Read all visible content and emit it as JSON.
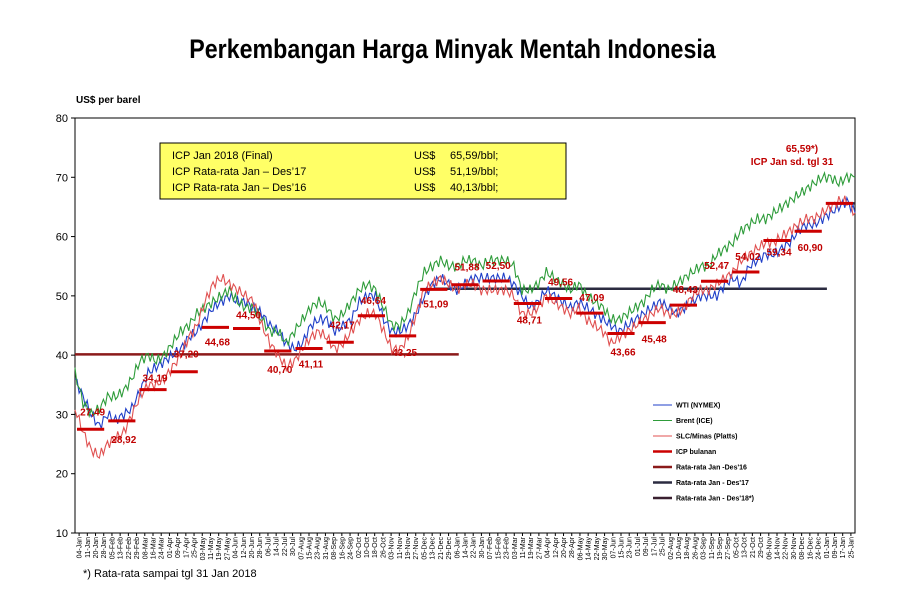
{
  "title": "Perkembangan Harga Minyak Mentah Indonesia",
  "y_unit_label": "US$ per barel",
  "footnote": "*) Rata-rata sampai tgl 31 Jan 2018",
  "info_box": [
    {
      "label": "ICP Jan 2018 (Final)",
      "currency": "US$",
      "value": "65,59/bbl;"
    },
    {
      "label": "ICP Rata-rata Jan – Des’17",
      "currency": "US$",
      "value": "51,19/bbl;"
    },
    {
      "label": "ICP Rata-rata Jan – Des’16",
      "currency": "US$",
      "value": "40,13/bbl;"
    }
  ],
  "top_annotation": [
    "65,59*)",
    "ICP Jan sd. tgl 31"
  ],
  "colors": {
    "wti": "#1f3fc8",
    "brent": "#2e9c3a",
    "slc": "#e05050",
    "icp_bulanan": "#cc0000",
    "avg16": "#8b1a1a",
    "avg17": "#2b2b40",
    "avg18": "#3a2030",
    "label": "#c00000",
    "info_box_fill": "#ffff66"
  },
  "chart_data": {
    "type": "line",
    "ylim": [
      10,
      80
    ],
    "yticks": [
      10,
      20,
      30,
      40,
      50,
      60,
      70,
      80
    ],
    "x_tick_labels": [
      "04-Jan",
      "11-Jan",
      "20-Jan",
      "28-Jan",
      "05-Feb",
      "13-Feb",
      "22-Feb",
      "29-Feb",
      "08-Mar",
      "16-Mar",
      "24-Mar",
      "01-Apr",
      "09-Apr",
      "17-Apr",
      "25-Apr",
      "03-May",
      "11-May",
      "19-May",
      "27-May",
      "04-Jun",
      "12-Jun",
      "20-Jun",
      "28-Jun",
      "06-Jul",
      "14-Jul",
      "22-Jul",
      "30-Jul",
      "07-Aug",
      "15-Aug",
      "23-Aug",
      "31-Aug",
      "08-Sep",
      "16-Sep",
      "24-Sep",
      "02-Oct",
      "10-Oct",
      "18-Oct",
      "26-Oct",
      "03-Nov",
      "11-Nov",
      "19-Nov",
      "27-Nov",
      "05-Dec",
      "13-Dec",
      "21-Dec",
      "29-Dec",
      "06-Jan",
      "14-Jan",
      "22-Jan",
      "30-Jan",
      "07-Feb",
      "15-Feb",
      "23-Feb",
      "03-Mar",
      "11-Mar",
      "19-Mar",
      "27-Mar",
      "04-Apr",
      "12-Apr",
      "20-Apr",
      "28-Apr",
      "06-May",
      "14-May",
      "22-May",
      "30-May",
      "07-Jun",
      "15-Jun",
      "23-Jun",
      "01-Jul",
      "09-Jul",
      "17-Jul",
      "25-Jul",
      "02-Aug",
      "10-Aug",
      "18-Aug",
      "26-Aug",
      "03-Sep",
      "11-Sep",
      "19-Sep",
      "27-Sep",
      "05-Oct",
      "13-Oct",
      "21-Oct",
      "29-Oct",
      "06-Nov",
      "14-Nov",
      "22-Nov",
      "30-Nov",
      "08-Dec",
      "16-Dec",
      "24-Dec",
      "01-Jan",
      "09-Jan",
      "17-Jan",
      "25-Jan"
    ],
    "series": [
      {
        "name": "WTI (NYMEX)",
        "values": [
          36,
          33,
          30,
          28,
          30,
          29,
          30,
          31,
          34,
          37,
          38,
          39,
          40,
          41,
          43,
          44,
          46,
          48,
          49,
          50,
          49,
          49,
          48,
          47,
          45,
          44,
          42,
          41,
          42,
          45,
          46,
          46,
          44,
          45,
          46,
          49,
          50,
          50,
          46,
          44,
          44,
          45,
          47,
          50,
          52,
          53,
          52,
          51,
          52,
          53,
          53,
          53,
          53,
          53,
          52,
          50,
          48,
          49,
          51,
          50,
          49,
          48,
          49,
          48,
          47,
          46,
          45,
          44,
          45,
          46,
          47,
          48,
          49,
          48,
          47,
          48,
          49,
          50,
          50,
          50,
          52,
          53,
          52,
          55,
          56,
          57,
          57,
          58,
          59,
          61,
          62,
          62,
          63,
          64,
          65,
          66,
          64
        ]
      },
      {
        "name": "Brent (ICE)",
        "values": [
          37,
          32,
          30,
          31,
          33,
          33,
          34,
          36,
          39,
          40,
          39,
          40,
          42,
          44,
          45,
          47,
          48,
          49,
          50,
          51,
          49,
          48,
          48,
          46,
          44,
          44,
          42,
          44,
          46,
          48,
          49,
          48,
          46,
          47,
          49,
          51,
          52,
          51,
          48,
          45,
          45,
          47,
          51,
          54,
          55,
          56,
          55,
          55,
          56,
          56,
          55,
          56,
          56,
          56,
          55,
          51,
          51,
          52,
          54,
          53,
          52,
          51,
          52,
          50,
          49,
          48,
          46,
          46,
          47,
          48,
          49,
          51,
          52,
          51,
          52,
          53,
          54,
          55,
          55,
          57,
          58,
          59,
          61,
          62,
          63,
          63,
          64,
          65,
          66,
          67,
          68,
          69,
          70,
          70,
          69,
          70,
          70
        ]
      },
      {
        "name": "SLC/Minas (Platts)",
        "values": [
          31,
          27,
          24,
          23,
          25,
          26,
          27,
          30,
          33,
          35,
          35,
          36,
          38,
          40,
          43,
          45,
          49,
          52,
          53,
          52,
          51,
          50,
          49,
          45,
          42,
          40,
          38,
          39,
          41,
          43,
          44,
          43,
          41,
          42,
          44,
          46,
          47,
          47,
          44,
          41,
          41,
          43,
          47,
          51,
          52,
          53,
          52,
          51,
          52,
          52,
          51,
          51,
          51,
          51,
          50,
          47,
          47,
          48,
          50,
          49,
          48,
          47,
          48,
          46,
          45,
          44,
          42,
          43,
          44,
          45,
          46,
          47,
          48,
          47,
          47,
          48,
          50,
          51,
          51,
          52,
          53,
          54,
          56,
          57,
          58,
          59,
          59,
          60,
          61,
          62,
          63,
          63,
          64,
          65,
          66,
          66,
          64
        ]
      },
      {
        "name": "ICP bulanan",
        "values": [
          27.49,
          27.49,
          27.49,
          27.49,
          28.92,
          28.92,
          28.92,
          28.92,
          34.19,
          34.19,
          34.19,
          37.2,
          37.2,
          37.2,
          37.2,
          44.68,
          44.68,
          44.68,
          44.68,
          44.5,
          44.5,
          44.5,
          44.5,
          40.7,
          40.7,
          40.7,
          40.7,
          41.11,
          41.11,
          41.11,
          41.11,
          42.17,
          42.17,
          42.17,
          42.17,
          46.64,
          46.64,
          46.64,
          43.25,
          43.25,
          43.25,
          43.25,
          51.09,
          51.09,
          51.09,
          51.09,
          51.88,
          51.88,
          51.88,
          51.88,
          52.5,
          52.5,
          52.5,
          48.71,
          48.71,
          48.71,
          48.71,
          49.56,
          49.56,
          49.56,
          49.56,
          47.09,
          47.09,
          47.09,
          47.09,
          43.66,
          43.66,
          43.66,
          43.66,
          45.48,
          45.48,
          45.48,
          45.48,
          48.43,
          48.43,
          48.43,
          48.43,
          52.47,
          52.47,
          52.47,
          52.47,
          54.02,
          54.02,
          54.02,
          54.02,
          59.34,
          59.34,
          59.34,
          59.34,
          60.9,
          60.9,
          60.9,
          60.9,
          65.59,
          65.59,
          65.59,
          65.59
        ]
      },
      {
        "name": "Rata-rata Jan -Des'16",
        "values": [
          40.13,
          40.13
        ]
      },
      {
        "name": "Rata-rata Jan - Des'17",
        "values": [
          51.19,
          51.19
        ]
      },
      {
        "name": "Rata-rata Jan - Des'18*)",
        "values": [
          65.59,
          65.59
        ]
      }
    ],
    "icp_labels": [
      {
        "text": "27,49",
        "month": 0,
        "value": 27.49
      },
      {
        "text": "28,92",
        "month": 1,
        "value": 28.92
      },
      {
        "text": "34,19",
        "month": 2,
        "value": 34.19
      },
      {
        "text": "37,20",
        "month": 3,
        "value": 37.2
      },
      {
        "text": "44,68",
        "month": 4,
        "value": 44.68
      },
      {
        "text": "44,50",
        "month": 5,
        "value": 44.5
      },
      {
        "text": "40,70",
        "month": 6,
        "value": 40.7
      },
      {
        "text": "41,11",
        "month": 7,
        "value": 41.11
      },
      {
        "text": "42,17",
        "month": 8,
        "value": 42.17
      },
      {
        "text": "46,64",
        "month": 9,
        "value": 46.64
      },
      {
        "text": "43,25",
        "month": 10,
        "value": 43.25
      },
      {
        "text": "51,09",
        "month": 11,
        "value": 51.09
      },
      {
        "text": "51,88",
        "month": 12,
        "value": 51.88
      },
      {
        "text": "52,50",
        "month": 13,
        "value": 52.5
      },
      {
        "text": "48,71",
        "month": 14,
        "value": 48.71
      },
      {
        "text": "49,56",
        "month": 15,
        "value": 49.56
      },
      {
        "text": "47,09",
        "month": 16,
        "value": 47.09
      },
      {
        "text": "43,66",
        "month": 17,
        "value": 43.66
      },
      {
        "text": "45,48",
        "month": 18,
        "value": 45.48
      },
      {
        "text": "48,43",
        "month": 19,
        "value": 48.43
      },
      {
        "text": "52,47",
        "month": 20,
        "value": 52.47
      },
      {
        "text": "54,02",
        "month": 21,
        "value": 54.02
      },
      {
        "text": "59,34",
        "month": 22,
        "value": 59.34
      },
      {
        "text": "60,90",
        "month": 23,
        "value": 60.9
      }
    ],
    "legend_placement": "bottom-right",
    "grid": false
  }
}
